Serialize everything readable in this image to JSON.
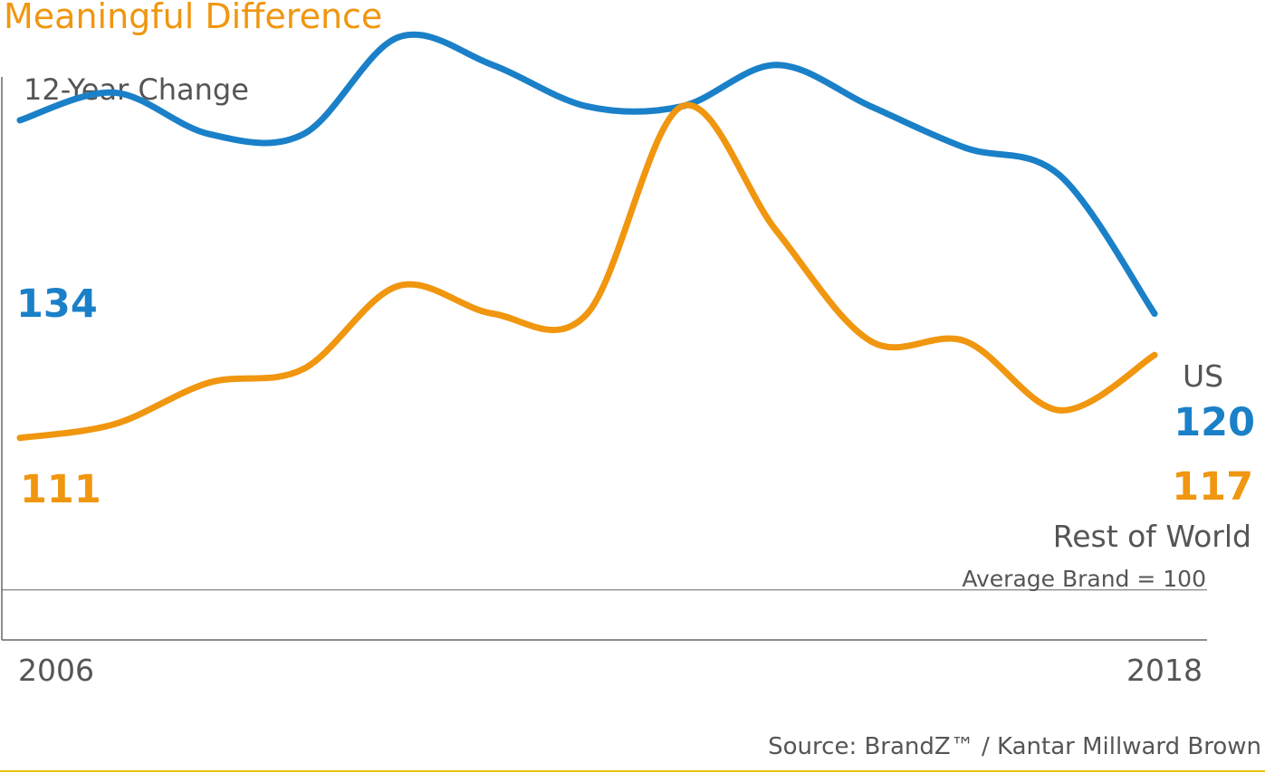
{
  "colors": {
    "us": "#1a80c8",
    "rest_of_world": "#f0960f",
    "text": "#555555",
    "axis": "#666666",
    "footer_line": "#e6c400"
  },
  "chart_data": {
    "type": "line",
    "title": "Meaningful Difference",
    "ylabel": "12-Year Change",
    "x": [
      2006,
      2007,
      2008,
      2009,
      2010,
      2011,
      2012,
      2013,
      2014,
      2015,
      2016,
      2017,
      2018
    ],
    "x_tick_labels": [
      "2006",
      "2018"
    ],
    "ylim": [
      95,
      141
    ],
    "baseline": {
      "value": 100,
      "label": "Average Brand = 100"
    },
    "series": [
      {
        "name": "US",
        "start_label": "134",
        "end_label": "120",
        "values": [
          134,
          136,
          133,
          133,
          140,
          138,
          135,
          135,
          138,
          135,
          132,
          130,
          120
        ]
      },
      {
        "name": "Rest of World",
        "start_label": "111",
        "end_label": "117",
        "values": [
          111,
          112,
          115,
          116,
          122,
          120,
          120,
          135,
          126,
          118,
          118,
          113,
          117
        ]
      }
    ]
  },
  "source": "Source: BrandZ™ / Kantar Millward Brown"
}
